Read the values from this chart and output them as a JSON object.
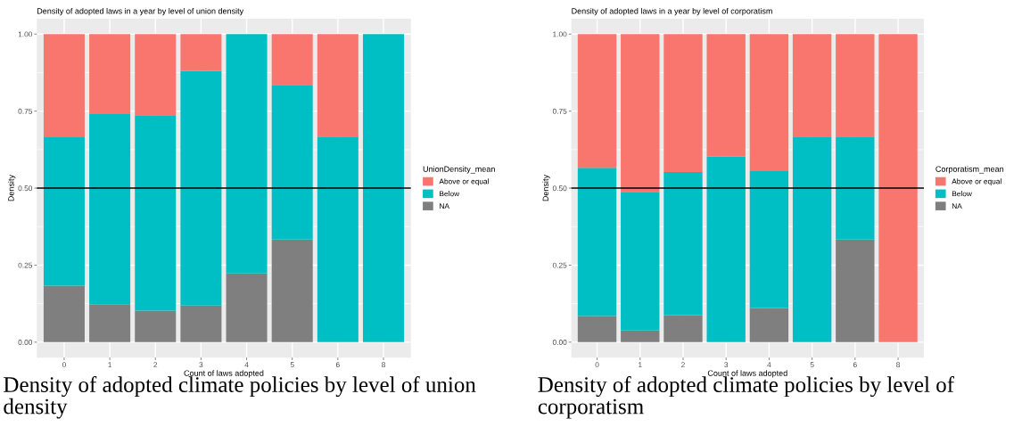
{
  "chart_data": [
    {
      "type": "bar",
      "stacked": true,
      "title": "Density of adopted laws in a year by level of union density",
      "xlabel": "Count of laws adopted",
      "ylabel": "Density",
      "legend_title": "UnionDensity_mean",
      "legend": "right",
      "grid": true,
      "categories": [
        "0",
        "1",
        "2",
        "3",
        "4",
        "5",
        "6",
        "8"
      ],
      "series": [
        {
          "name": "NA",
          "color": "#7f7f7f",
          "values": [
            0.183,
            0.123,
            0.102,
            0.119,
            0.223,
            0.333,
            0,
            0
          ]
        },
        {
          "name": "Below",
          "color": "#00bfc4",
          "values": [
            0.482,
            0.617,
            0.635,
            0.762,
            0.777,
            0.502,
            0.667,
            1
          ]
        },
        {
          "name": "Above or equal",
          "color": "#f8766d",
          "values": [
            0.335,
            0.26,
            0.263,
            0.119,
            0,
            0.165,
            0.333,
            0
          ]
        }
      ],
      "ylim": [
        -0.05,
        1.05
      ],
      "yticks": [
        {
          "value": 0,
          "label": "0.00"
        },
        {
          "value": 0.25,
          "label": "0.25"
        },
        {
          "value": 0.5,
          "label": "0.50"
        },
        {
          "value": 0.75,
          "label": "0.75"
        },
        {
          "value": 1,
          "label": "1.00"
        }
      ],
      "ref_lines": [
        {
          "axis": "y",
          "value": 0.5,
          "color": "#000000"
        }
      ],
      "annotations": [
        "Density of adopted climate policies by level of union density"
      ]
    },
    {
      "type": "bar",
      "stacked": true,
      "title": "Density of adopted laws in a year by level of corporatism",
      "xlabel": "Count of laws adopted",
      "ylabel": "Density",
      "legend_title": "Corporatism_mean",
      "legend": "right",
      "grid": true,
      "categories": [
        "0",
        "1",
        "2",
        "3",
        "4",
        "5",
        "6",
        "8"
      ],
      "series": [
        {
          "name": "NA",
          "color": "#7f7f7f",
          "values": [
            0.085,
            0.038,
            0.088,
            0,
            0.111,
            0,
            0.333,
            0
          ]
        },
        {
          "name": "Below",
          "color": "#00bfc4",
          "values": [
            0.481,
            0.45,
            0.464,
            0.602,
            0.444,
            0.667,
            0.334,
            0
          ]
        },
        {
          "name": "Above or equal",
          "color": "#f8766d",
          "values": [
            0.434,
            0.512,
            0.448,
            0.398,
            0.445,
            0.333,
            0.333,
            1
          ]
        }
      ],
      "ylim": [
        -0.05,
        1.05
      ],
      "yticks": [
        {
          "value": 0,
          "label": "0.00"
        },
        {
          "value": 0.25,
          "label": "0.25"
        },
        {
          "value": 0.5,
          "label": "0.50"
        },
        {
          "value": 0.75,
          "label": "0.75"
        },
        {
          "value": 1,
          "label": "1.00"
        }
      ],
      "ref_lines": [
        {
          "axis": "y",
          "value": 0.5,
          "color": "#000000"
        }
      ],
      "annotations": [
        "Density of adopted climate policies by level of corporatism"
      ]
    }
  ]
}
